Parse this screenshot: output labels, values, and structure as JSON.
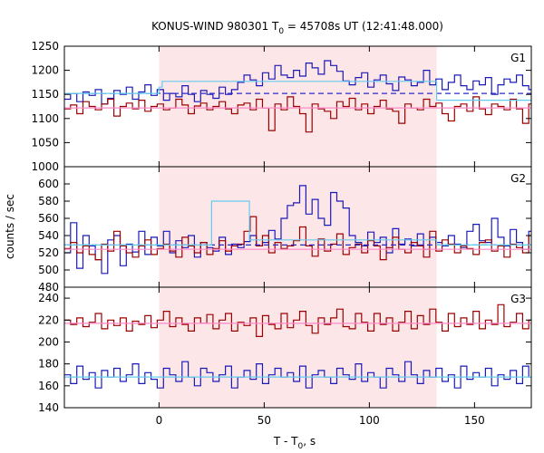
{
  "chart_data": {
    "type": "line",
    "title": {
      "prefix": "KONUS-WIND 980301 T",
      "sub": "0",
      "suffix": " = 45708s UT (12:41:48.000)"
    },
    "xlabel": {
      "prefix": "T - T",
      "sub": "0",
      "suffix": ", s"
    },
    "ylabel": "counts / sec",
    "xlim": [
      -45,
      177
    ],
    "xticks": [
      0,
      50,
      100,
      150
    ],
    "highlight_interval": [
      0,
      132
    ],
    "colors": {
      "red_series": "#9b0000",
      "blue_series": "#1a1ab8",
      "pink_level": "#ff88c8",
      "cyan_level": "#66ccee",
      "blue_dashed": "#2a2acc",
      "highlight": "#fde6e8"
    },
    "panels": [
      {
        "id": "G1",
        "label": "G1",
        "ylim": [
          1000,
          1250
        ],
        "yticks": [
          1000,
          1050,
          1100,
          1150,
          1200,
          1250
        ],
        "series": [
          {
            "color_key": "blue_series",
            "x0": -45,
            "step": 2.944,
            "values": [
              1140,
              1152,
              1135,
              1155,
              1148,
              1160,
              1130,
              1142,
              1158,
              1150,
              1165,
              1140,
              1155,
              1170,
              1148,
              1160,
              1138,
              1152,
              1145,
              1168,
              1150,
              1135,
              1158,
              1150,
              1142,
              1165,
              1150,
              1160,
              1175,
              1190,
              1180,
              1168,
              1195,
              1182,
              1210,
              1190,
              1185,
              1200,
              1188,
              1215,
              1205,
              1192,
              1220,
              1210,
              1198,
              1178,
              1170,
              1185,
              1195,
              1165,
              1180,
              1190,
              1172,
              1158,
              1186,
              1180,
              1168,
              1175,
              1200,
              1170,
              1182,
              1160,
              1175,
              1190,
              1168,
              1160,
              1178,
              1170,
              1185,
              1150,
              1170,
              1182,
              1175,
              1190,
              1168,
              1160,
              1182,
              1170,
              1175,
              1158,
              1165,
              1150,
              1170,
              1155,
              1135,
              1160,
              1145,
              1170,
              1150,
              1140,
              1162,
              1155,
              1148,
              1140,
              1168,
              1152,
              1158,
              1145,
              1165,
              1150,
              1135,
              1160,
              1145,
              1158,
              1140,
              1165,
              1150,
              1148,
              1160,
              1140,
              1160,
              1148,
              1135,
              1160,
              1150
            ]
          },
          {
            "color_key": "red_series",
            "x0": -45,
            "step": 2.944,
            "values": [
              1120,
              1128,
              1110,
              1135,
              1125,
              1118,
              1130,
              1140,
              1105,
              1125,
              1132,
              1120,
              1138,
              1115,
              1125,
              1130,
              1118,
              1122,
              1140,
              1128,
              1110,
              1126,
              1132,
              1118,
              1125,
              1135,
              1120,
              1110,
              1128,
              1132,
              1118,
              1140,
              1122,
              1075,
              1130,
              1118,
              1145,
              1125,
              1110,
              1072,
              1130,
              1120,
              1115,
              1100,
              1135,
              1125,
              1142,
              1118,
              1130,
              1110,
              1125,
              1138,
              1120,
              1115,
              1090,
              1130,
              1122,
              1118,
              1140,
              1125,
              1132,
              1110,
              1095,
              1125,
              1130,
              1115,
              1145,
              1120,
              1108,
              1130,
              1125,
              1118,
              1140,
              1120,
              1090,
              1130,
              1118,
              1125,
              1135,
              1110,
              1122,
              1092,
              1130,
              1115,
              1125,
              1140,
              1120,
              1105,
              1130,
              1118,
              1125,
              1110,
              1132,
              1120,
              1142,
              1118,
              1125,
              1100,
              1130,
              1115,
              1128,
              1140,
              1112,
              1125,
              1132,
              1118,
              1108,
              1130,
              1122,
              1135,
              1115,
              1128,
              1110,
              1126,
              1125
            ]
          }
        ],
        "levels": [
          {
            "color_key": "pink_level",
            "dashed": false,
            "x": [
              -45,
              177
            ],
            "y": 1122
          },
          {
            "color_key": "blue_dashed",
            "dashed": true,
            "x": [
              -45,
              177
            ],
            "y": 1152
          },
          {
            "color_key": "cyan_level",
            "dashed": false,
            "steps": [
              [
                -45,
                0,
                1152
              ],
              [
                0,
                1.5,
                1165
              ],
              [
                1.5,
                132,
                1177
              ],
              [
                132,
                177,
                1138
              ]
            ]
          }
        ]
      },
      {
        "id": "G2",
        "label": "G2",
        "ylim": [
          480,
          620
        ],
        "yticks": [
          480,
          500,
          520,
          540,
          560,
          580,
          600
        ],
        "series": [
          {
            "color_key": "blue_series",
            "x0": -45,
            "step": 2.944,
            "values": [
              520,
              555,
              502,
              540,
              528,
              512,
              496,
              535,
              540,
              505,
              530,
              521,
              545,
              518,
              538,
              528,
              545,
              520,
              534,
              526,
              540,
              515,
              532,
              526,
              522,
              538,
              518,
              530,
              526,
              533,
              540,
              528,
              532,
              546,
              536,
              560,
              575,
              578,
              598,
              565,
              582,
              560,
              552,
              590,
              580,
              572,
              540,
              532,
              528,
              544,
              532,
              538,
              520,
              548,
              530,
              536,
              528,
              542,
              524,
              538,
              532,
              528,
              540,
              530,
              526,
              545,
              553,
              534,
              532,
              560,
              538,
              528,
              547,
              532,
              524,
              545,
              536,
              540,
              530,
              522,
              538,
              548,
              526,
              536,
              532,
              540,
              532,
              528,
              520,
              525,
              540,
              510,
              500,
              528,
              520,
              505,
              525,
              510,
              525,
              533,
              520,
              512,
              530,
              528,
              518,
              535,
              520,
              526,
              532,
              520,
              528,
              505,
              520,
              530,
              525
            ]
          },
          {
            "color_key": "red_series",
            "x0": -45,
            "step": 2.944,
            "values": [
              525,
              532,
              520,
              528,
              518,
              512,
              530,
              522,
              545,
              528,
              520,
              515,
              528,
              535,
              518,
              525,
              530,
              522,
              515,
              538,
              528,
              520,
              532,
              518,
              525,
              534,
              522,
              528,
              530,
              545,
              562,
              528,
              540,
              520,
              532,
              525,
              528,
              534,
              550,
              528,
              516,
              536,
              522,
              530,
              542,
              518,
              526,
              530,
              520,
              534,
              528,
              512,
              526,
              538,
              524,
              520,
              532,
              528,
              515,
              545,
              522,
              535,
              530,
              520,
              528,
              525,
              518,
              532,
              535,
              522,
              528,
              515,
              530,
              526,
              520,
              540,
              525,
              518,
              532,
              524,
              545,
              520,
              528,
              535,
              526,
              522,
              530,
              518,
              524,
              534,
              520,
              528,
              538,
              515,
              530,
              524,
              520,
              506,
              528,
              520,
              532,
              535,
              528,
              510,
              532,
              526,
              528,
              536,
              520,
              525,
              512,
              530,
              538,
              528,
              500
            ]
          }
        ],
        "levels": [
          {
            "color_key": "pink_level",
            "dashed": false,
            "x": [
              -45,
              177
            ],
            "y": 524
          },
          {
            "color_key": "blue_dashed",
            "dashed": true,
            "x": [
              -45,
              177
            ],
            "y": 529
          },
          {
            "color_key": "cyan_level",
            "dashed": false,
            "steps": [
              [
                -45,
                25,
                529
              ],
              [
                25,
                43,
                580
              ],
              [
                43,
                132,
                535
              ],
              [
                132,
                177,
                529
              ]
            ]
          }
        ]
      },
      {
        "id": "G3",
        "label": "G3",
        "ylim": [
          140,
          250
        ],
        "yticks": [
          140,
          160,
          180,
          200,
          220,
          240
        ],
        "series": [
          {
            "color_key": "red_series",
            "x0": -45,
            "step": 2.944,
            "values": [
              220,
              216,
              222,
              214,
              218,
              226,
              212,
              220,
              215,
              222,
              210,
              219,
              216,
              224,
              213,
              220,
              228,
              214,
              222,
              216,
              210,
              222,
              217,
              225,
              212,
              220,
              226,
              210,
              218,
              215,
              222,
              205,
              224,
              216,
              212,
              226,
              213,
              220,
              228,
              215,
              208,
              222,
              216,
              222,
              230,
              214,
              212,
              226,
              218,
              210,
              226,
              216,
              222,
              210,
              218,
              228,
              212,
              224,
              216,
              230,
              218,
              210,
              226,
              214,
              222,
              216,
              228,
              212,
              220,
              216,
              234,
              214,
              218,
              226,
              212,
              220,
              216,
              228,
              214,
              222,
              216,
              212,
              226,
              218,
              222,
              212,
              220,
              224,
              214,
              226,
              212,
              218,
              222,
              216,
              226,
              214,
              220,
              218,
              228,
              212,
              216,
              224,
              214,
              226,
              212,
              220,
              222,
              218,
              216,
              214,
              228,
              218,
              216,
              222,
              225
            ]
          },
          {
            "color_key": "blue_series",
            "x0": -45,
            "step": 2.944,
            "values": [
              170,
              162,
              178,
              166,
              172,
              158,
              174,
              168,
              176,
              164,
              170,
              180,
              162,
              172,
              166,
              158,
              176,
              170,
              164,
              182,
              168,
              160,
              176,
              172,
              164,
              170,
              178,
              158,
              168,
              174,
              166,
              180,
              162,
              170,
              176,
              168,
              172,
              164,
              178,
              158,
              170,
              174,
              168,
              162,
              176,
              170,
              166,
              180,
              164,
              172,
              168,
              158,
              176,
              170,
              164,
              182,
              170,
              162,
              174,
              168,
              176,
              164,
              170,
              158,
              178,
              166,
              172,
              168,
              176,
              160,
              170,
              166,
              174,
              162,
              178,
              168,
              170,
              164,
              180,
              166,
              172,
              158,
              174,
              168,
              176,
              164,
              170,
              162,
              178,
              166,
              172,
              158,
              176,
              168,
              164,
              180,
              170,
              162,
              176,
              168,
              172,
              166,
              160,
              174,
              168,
              170,
              176,
              162,
              168,
              174,
              166,
              160,
              172,
              168,
              164
            ]
          }
        ],
        "levels": [
          {
            "color_key": "pink_level",
            "dashed": false,
            "x": [
              -45,
              177
            ],
            "y": 217
          },
          {
            "color_key": "cyan_level",
            "dashed": false,
            "x": [
              -45,
              177
            ],
            "y": 168
          }
        ]
      }
    ]
  }
}
